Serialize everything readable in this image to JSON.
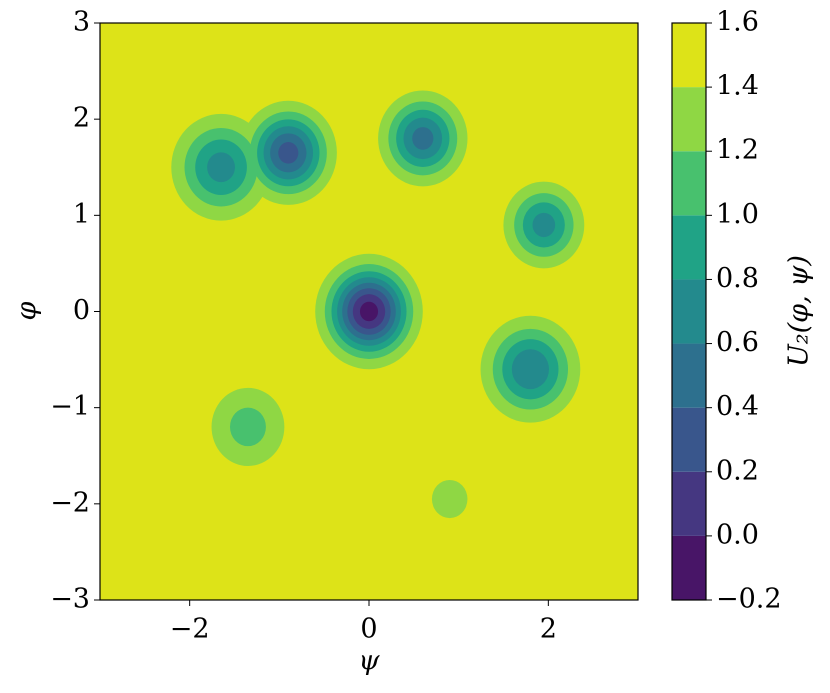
{
  "chart_data": {
    "type": "contour",
    "xlabel": "ψ",
    "ylabel": "φ",
    "colorbar_label": "U₂(φ, ψ)",
    "xlim": [
      -3,
      3
    ],
    "ylim": [
      -3,
      3
    ],
    "xticks": [
      {
        "value": -2,
        "label": "−2"
      },
      0,
      2
    ],
    "yticks": [
      {
        "value": -3,
        "label": "−3"
      },
      {
        "value": -2,
        "label": "−2"
      },
      {
        "value": -1,
        "label": "−1"
      },
      0,
      1,
      2,
      3
    ],
    "levels": [
      {
        "value": -0.2,
        "label": "−0.2"
      },
      {
        "value": 0,
        "label": "0.0"
      },
      {
        "value": 0.2,
        "label": "0.2"
      },
      {
        "value": 0.4,
        "label": "0.4"
      },
      {
        "value": 0.6,
        "label": "0.6"
      },
      {
        "value": 0.8,
        "label": "0.8"
      },
      {
        "value": 1.0,
        "label": "1.0"
      },
      {
        "value": 1.2,
        "label": "1.2"
      },
      {
        "value": 1.4,
        "label": "1.4"
      },
      {
        "value": 1.6,
        "label": "1.6"
      }
    ],
    "colors": [
      "#481567",
      "#453781",
      "#39568c",
      "#2d708e",
      "#238a8d",
      "#20a386",
      "#48c16e",
      "#8fd744",
      "#dde318"
    ],
    "wells": [
      {
        "x": 0,
        "y": 0,
        "min": -0.1,
        "sigma": 0.29
      },
      {
        "x": -0.9,
        "y": 1.65,
        "min": 0.3,
        "sigma": 0.28
      },
      {
        "x": -1.65,
        "y": 1.5,
        "min": 0.7,
        "sigma": 0.32
      },
      {
        "x": 0.6,
        "y": 1.8,
        "min": 0.5,
        "sigma": 0.27
      },
      {
        "x": 1.95,
        "y": 0.9,
        "min": 0.7,
        "sigma": 0.26
      },
      {
        "x": 1.8,
        "y": -0.6,
        "min": 0.6,
        "sigma": 0.31
      },
      {
        "x": -1.35,
        "y": -1.2,
        "min": 1.1,
        "sigma": 0.3
      },
      {
        "x": 0.9,
        "y": -1.95,
        "min": 1.3,
        "sigma": 0.22
      }
    ]
  }
}
